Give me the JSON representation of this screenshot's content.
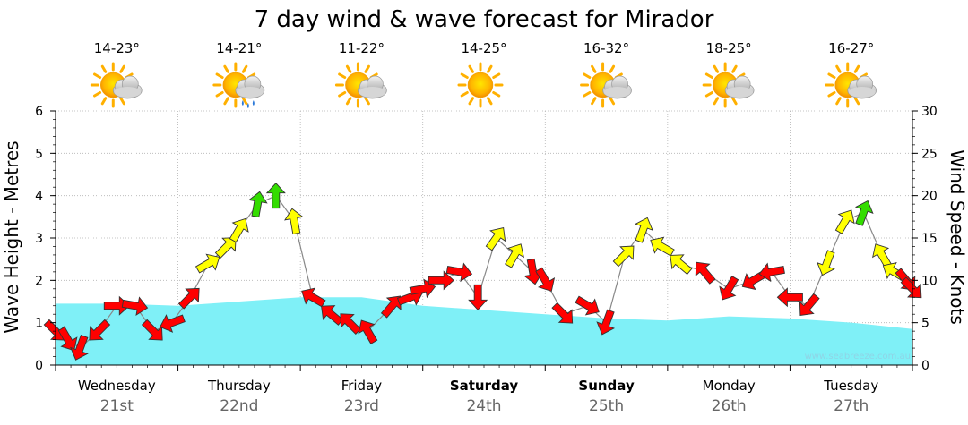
{
  "chart_data": {
    "type": "line",
    "title": "7 day wind & wave forecast for Mirador",
    "ylabel_left": "Wave Height - Metres",
    "ylabel_right": "Wind Speed - Knots",
    "ylim_left": [
      0,
      6
    ],
    "ylim_right": [
      0,
      30
    ],
    "ticks_left": [
      "0",
      "1",
      "2",
      "3",
      "4",
      "5",
      "6"
    ],
    "ticks_right": [
      "0",
      "5",
      "10",
      "15",
      "20",
      "25",
      "30"
    ],
    "days": [
      {
        "name": "Wednesday",
        "num": "21st",
        "bold": false,
        "temp": "14-23°",
        "icon": "partly-cloudy-icon"
      },
      {
        "name": "Thursday",
        "num": "22nd",
        "bold": false,
        "temp": "14-21°",
        "icon": "showers-icon"
      },
      {
        "name": "Friday",
        "num": "23rd",
        "bold": false,
        "temp": "11-22°",
        "icon": "partly-cloudy-icon"
      },
      {
        "name": "Saturday",
        "num": "24th",
        "bold": true,
        "temp": "14-25°",
        "icon": "sunny-icon"
      },
      {
        "name": "Sunday",
        "num": "25th",
        "bold": true,
        "temp": "16-32°",
        "icon": "partly-cloudy-icon"
      },
      {
        "name": "Monday",
        "num": "26th",
        "bold": false,
        "temp": "18-25°",
        "icon": "partly-cloudy-icon"
      },
      {
        "name": "Tuesday",
        "num": "27th",
        "bold": false,
        "temp": "16-27°",
        "icon": "partly-cloudy-icon"
      }
    ],
    "wave_series": {
      "name": "Wave Height (m)",
      "t": [
        0.0,
        0.5,
        1.0,
        1.5,
        2.0,
        2.5,
        3.0,
        3.5,
        4.0,
        4.5,
        5.0,
        5.5,
        6.0,
        6.5,
        7.0
      ],
      "values": [
        1.45,
        1.45,
        1.4,
        1.5,
        1.6,
        1.6,
        1.4,
        1.3,
        1.2,
        1.1,
        1.05,
        1.15,
        1.1,
        1.0,
        0.85
      ]
    },
    "wind_series": {
      "name": "Wind Speed (knots)",
      "t": [
        0.0,
        0.1,
        0.2,
        0.35,
        0.5,
        0.65,
        0.8,
        0.95,
        1.1,
        1.25,
        1.4,
        1.5,
        1.65,
        1.8,
        1.95,
        2.1,
        2.25,
        2.4,
        2.55,
        2.75,
        2.9,
        3.0,
        3.15,
        3.3,
        3.45,
        3.6,
        3.75,
        3.9,
        4.0,
        4.15,
        4.35,
        4.5,
        4.65,
        4.8,
        4.95,
        5.1,
        5.3,
        5.5,
        5.7,
        5.85,
        6.0,
        6.15,
        6.3,
        6.45,
        6.6,
        6.75,
        6.85,
        6.95,
        7.0
      ],
      "values": [
        4,
        3,
        2,
        4,
        7,
        7,
        4,
        5,
        8,
        12,
        14,
        16,
        19,
        20,
        17,
        8,
        6,
        5,
        4,
        7,
        8,
        9,
        10,
        11,
        8,
        15,
        13,
        11,
        10,
        6,
        7,
        5,
        13,
        16,
        14,
        12,
        11,
        9,
        10,
        11,
        8,
        7,
        12,
        17,
        18,
        13,
        11,
        10,
        9
      ],
      "colors": [
        "#ff0000",
        "#ff0000",
        "#ff0000",
        "#ff0000",
        "#ff0000",
        "#ff0000",
        "#ff0000",
        "#ff0000",
        "#ff0000",
        "#ffff00",
        "#ffff00",
        "#ffff00",
        "#33dd00",
        "#33dd00",
        "#ffff00",
        "#ff0000",
        "#ff0000",
        "#ff0000",
        "#ff0000",
        "#ff0000",
        "#ff0000",
        "#ff0000",
        "#ff0000",
        "#ff0000",
        "#ff0000",
        "#ffff00",
        "#ffff00",
        "#ff0000",
        "#ff0000",
        "#ff0000",
        "#ff0000",
        "#ff0000",
        "#ffff00",
        "#ffff00",
        "#ffff00",
        "#ffff00",
        "#ff0000",
        "#ff0000",
        "#ff0000",
        "#ff0000",
        "#ff0000",
        "#ff0000",
        "#ffff00",
        "#ffff00",
        "#33dd00",
        "#ffff00",
        "#ffff00",
        "#ff0000",
        "#ff0000"
      ],
      "directions_deg": [
        135,
        150,
        200,
        225,
        90,
        100,
        135,
        250,
        45,
        60,
        45,
        30,
        10,
        0,
        350,
        300,
        310,
        315,
        330,
        40,
        70,
        80,
        90,
        100,
        180,
        35,
        30,
        170,
        150,
        135,
        120,
        200,
        45,
        20,
        300,
        310,
        320,
        210,
        240,
        260,
        270,
        220,
        200,
        30,
        20,
        330,
        300,
        140,
        135
      ]
    }
  },
  "colors": {
    "wave_fill": "#7ff0f7",
    "grid": "#b4b4b4",
    "axis": "#000000"
  },
  "watermark": "www.seabreeze.com.au"
}
